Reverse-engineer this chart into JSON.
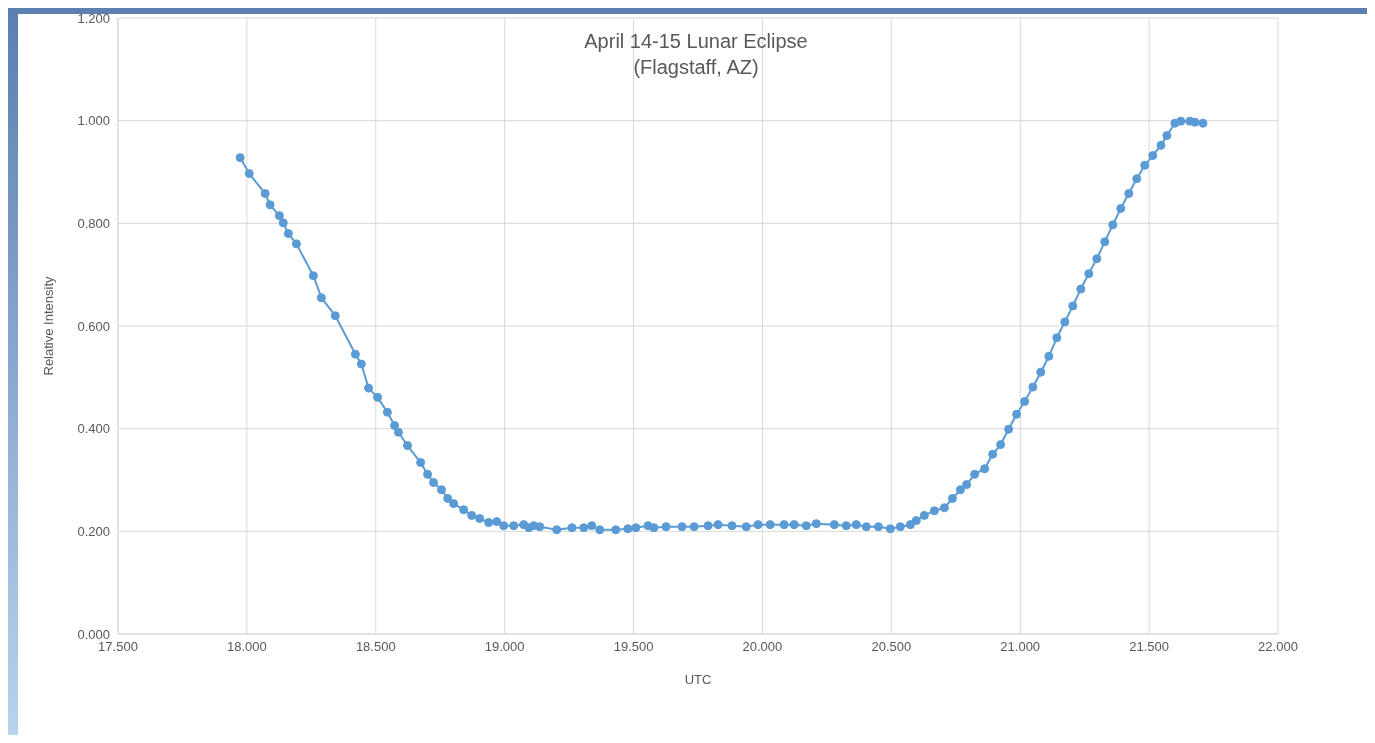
{
  "chart_data": {
    "type": "line",
    "title": "April 14-15 Lunar Eclipse",
    "subtitle": "(Flagstaff, AZ)",
    "xlabel": "UTC",
    "ylabel": "Relative Intensity",
    "x": [
      17.974,
      18.009,
      18.071,
      18.09,
      18.126,
      18.141,
      18.161,
      18.192,
      18.258,
      18.289,
      18.343,
      18.421,
      18.444,
      18.472,
      18.507,
      18.545,
      18.573,
      18.588,
      18.623,
      18.674,
      18.701,
      18.724,
      18.755,
      18.779,
      18.802,
      18.841,
      18.872,
      18.903,
      18.938,
      18.969,
      18.996,
      19.035,
      19.074,
      19.094,
      19.113,
      19.136,
      19.202,
      19.261,
      19.307,
      19.338,
      19.369,
      19.431,
      19.478,
      19.509,
      19.556,
      19.579,
      19.626,
      19.688,
      19.735,
      19.789,
      19.828,
      19.882,
      19.937,
      19.983,
      20.03,
      20.084,
      20.123,
      20.17,
      20.209,
      20.279,
      20.325,
      20.364,
      20.403,
      20.45,
      20.496,
      20.535,
      20.574,
      20.597,
      20.628,
      20.667,
      20.706,
      20.737,
      20.768,
      20.792,
      20.823,
      20.862,
      20.893,
      20.924,
      20.955,
      20.986,
      21.017,
      21.049,
      21.08,
      21.111,
      21.142,
      21.173,
      21.204,
      21.235,
      21.266,
      21.297,
      21.328,
      21.359,
      21.39,
      21.421,
      21.452,
      21.483,
      21.514,
      21.546,
      21.569,
      21.6,
      21.623,
      21.658,
      21.678,
      21.709
    ],
    "series": [
      {
        "color": "#5b9bd5",
        "values": [
          0.928,
          0.897,
          0.858,
          0.836,
          0.815,
          0.801,
          0.78,
          0.76,
          0.698,
          0.655,
          0.62,
          0.545,
          0.526,
          0.479,
          0.461,
          0.432,
          0.406,
          0.393,
          0.367,
          0.334,
          0.311,
          0.295,
          0.281,
          0.264,
          0.254,
          0.242,
          0.231,
          0.225,
          0.217,
          0.219,
          0.211,
          0.211,
          0.213,
          0.207,
          0.211,
          0.209,
          0.203,
          0.207,
          0.207,
          0.211,
          0.203,
          0.203,
          0.205,
          0.207,
          0.211,
          0.207,
          0.209,
          0.209,
          0.209,
          0.211,
          0.213,
          0.211,
          0.209,
          0.213,
          0.213,
          0.213,
          0.213,
          0.211,
          0.215,
          0.213,
          0.211,
          0.213,
          0.209,
          0.209,
          0.205,
          0.209,
          0.213,
          0.221,
          0.231,
          0.24,
          0.246,
          0.264,
          0.281,
          0.291,
          0.311,
          0.322,
          0.35,
          0.369,
          0.399,
          0.428,
          0.453,
          0.481,
          0.51,
          0.541,
          0.577,
          0.608,
          0.639,
          0.672,
          0.702,
          0.731,
          0.764,
          0.797,
          0.829,
          0.858,
          0.887,
          0.913,
          0.932,
          0.952,
          0.971,
          0.995,
          0.999,
          0.999,
          0.997,
          0.995
        ]
      }
    ],
    "xlim": [
      17.5,
      22.0
    ],
    "xticks": [
      {
        "value": 17.5,
        "label": "17.500"
      },
      {
        "value": 18,
        "label": "18.000"
      },
      {
        "value": 18.5,
        "label": "18.500"
      },
      {
        "value": 19,
        "label": "19.000"
      },
      {
        "value": 19.5,
        "label": "19.500"
      },
      {
        "value": 20,
        "label": "20.000"
      },
      {
        "value": 20.5,
        "label": "20.500"
      },
      {
        "value": 21,
        "label": "21.000"
      },
      {
        "value": 21.5,
        "label": "21.500"
      },
      {
        "value": 22,
        "label": "22.000"
      }
    ],
    "ylim": [
      0,
      1.2
    ],
    "yticks": [
      {
        "value": 0,
        "label": "0.000"
      },
      {
        "value": 0.2,
        "label": "0.200"
      },
      {
        "value": 0.4,
        "label": "0.400"
      },
      {
        "value": 0.6,
        "label": "0.600"
      },
      {
        "value": 0.8,
        "label": "0.800"
      },
      {
        "value": 1,
        "label": "1.000"
      },
      {
        "value": 1.2,
        "label": "1.200"
      }
    ],
    "grid": true,
    "marker": "circle",
    "line_style": "solid"
  }
}
